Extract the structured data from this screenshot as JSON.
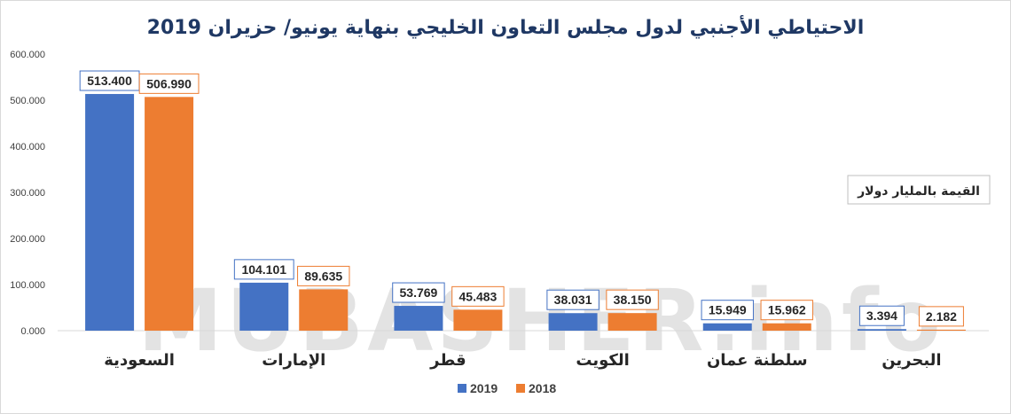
{
  "chart_data": {
    "type": "bar",
    "title": "الاحتياطي الأجنبي لدول مجلس التعاون الخليجي بنهاية يونيو/ حزيران 2019",
    "unit_note": "القيمة بالمليار دولار",
    "watermark": "MUBASHER.info",
    "categories": [
      "السعودية",
      "الإمارات",
      "قطر",
      "الكويت",
      "سلطنة عمان",
      "البحرين"
    ],
    "series": [
      {
        "name": "2019",
        "color": "#4472c4",
        "values": [
          513.4,
          104.101,
          53.769,
          38.031,
          15.949,
          3.394
        ],
        "labels": [
          "513.400",
          "104.101",
          "53.769",
          "38.031",
          "15.949",
          "3.394"
        ]
      },
      {
        "name": "2018",
        "color": "#ed7d31",
        "values": [
          506.99,
          89.635,
          45.483,
          38.15,
          15.962,
          2.182
        ],
        "labels": [
          "506.990",
          "89.635",
          "45.483",
          "38.150",
          "15.962",
          "2.182"
        ]
      }
    ],
    "y_ticks": [
      0,
      100,
      200,
      300,
      400,
      500,
      600
    ],
    "y_tick_labels": [
      "0.000",
      "100.000",
      "200.000",
      "300.000",
      "400.000",
      "500.000",
      "600.000"
    ],
    "ylim": [
      0,
      600
    ],
    "grid": false,
    "legend_position": "bottom"
  }
}
